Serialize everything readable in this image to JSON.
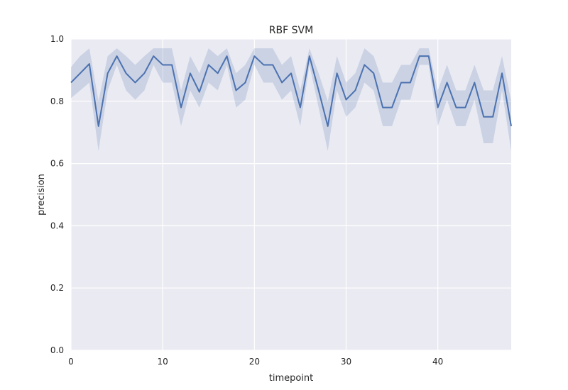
{
  "chart_data": {
    "type": "line",
    "title": "RBF SVM",
    "xlabel": "timepoint",
    "ylabel": "precision",
    "xlim": [
      0,
      48
    ],
    "ylim": [
      0.0,
      1.0
    ],
    "xticks": [
      0,
      10,
      20,
      30,
      40
    ],
    "xtick_labels": [
      "0",
      "10",
      "20",
      "30",
      "40"
    ],
    "yticks": [
      0.0,
      0.2,
      0.4,
      0.6,
      0.8,
      1.0
    ],
    "ytick_labels": [
      "0.0",
      "0.2",
      "0.4",
      "0.6",
      "0.8",
      "1.0"
    ],
    "grid": true,
    "colors": {
      "line": "#4c72b0",
      "band": "#4c72b0",
      "background": "#eaeaf2",
      "grid": "#ffffff"
    },
    "x": [
      0,
      1,
      2,
      3,
      4,
      5,
      6,
      7,
      8,
      9,
      10,
      11,
      12,
      13,
      14,
      15,
      16,
      17,
      18,
      19,
      20,
      21,
      22,
      23,
      24,
      25,
      26,
      27,
      28,
      29,
      30,
      31,
      32,
      33,
      34,
      35,
      36,
      37,
      38,
      39,
      40,
      41,
      42,
      43,
      44,
      45,
      46,
      47,
      48
    ],
    "series": [
      {
        "values": [
          0.86,
          0.89,
          0.92,
          0.72,
          0.89,
          0.945,
          0.89,
          0.86,
          0.89,
          0.945,
          0.917,
          0.917,
          0.78,
          0.89,
          0.83,
          0.917,
          0.89,
          0.945,
          0.835,
          0.86,
          0.945,
          0.917,
          0.917,
          0.86,
          0.89,
          0.78,
          0.945,
          0.835,
          0.72,
          0.89,
          0.805,
          0.835,
          0.917,
          0.89,
          0.78,
          0.78,
          0.86,
          0.86,
          0.945,
          0.945,
          0.78,
          0.86,
          0.78,
          0.78,
          0.86,
          0.75,
          0.75,
          0.89,
          0.72
        ],
        "upper": [
          0.91,
          0.945,
          0.97,
          0.8,
          0.945,
          0.97,
          0.945,
          0.917,
          0.945,
          0.97,
          0.97,
          0.97,
          0.835,
          0.945,
          0.89,
          0.97,
          0.945,
          0.97,
          0.89,
          0.917,
          0.97,
          0.97,
          0.97,
          0.917,
          0.945,
          0.835,
          0.97,
          0.89,
          0.8,
          0.945,
          0.86,
          0.89,
          0.97,
          0.945,
          0.86,
          0.86,
          0.917,
          0.917,
          0.97,
          0.97,
          0.835,
          0.917,
          0.835,
          0.835,
          0.917,
          0.835,
          0.835,
          0.945,
          0.8
        ],
        "lower": [
          0.81,
          0.835,
          0.86,
          0.64,
          0.835,
          0.917,
          0.835,
          0.805,
          0.835,
          0.917,
          0.86,
          0.86,
          0.72,
          0.835,
          0.78,
          0.86,
          0.835,
          0.917,
          0.78,
          0.805,
          0.917,
          0.86,
          0.86,
          0.805,
          0.835,
          0.72,
          0.917,
          0.78,
          0.64,
          0.835,
          0.75,
          0.78,
          0.86,
          0.835,
          0.72,
          0.72,
          0.805,
          0.805,
          0.917,
          0.917,
          0.72,
          0.805,
          0.72,
          0.72,
          0.805,
          0.665,
          0.665,
          0.835,
          0.64
        ]
      }
    ]
  }
}
